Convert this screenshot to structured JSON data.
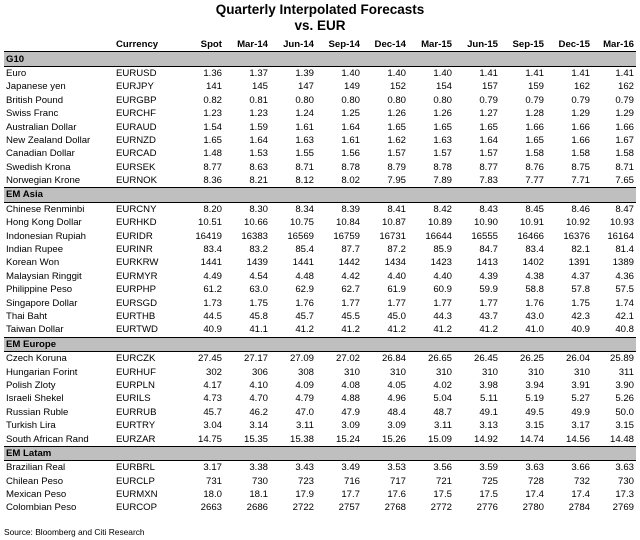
{
  "title": "Quarterly Interpolated Forecasts",
  "subtitle": "vs. EUR",
  "columns": [
    "",
    "Currency",
    "Spot",
    "Mar-14",
    "Jun-14",
    "Sep-14",
    "Dec-14",
    "Mar-15",
    "Jun-15",
    "Sep-15",
    "Dec-15",
    "Mar-16"
  ],
  "sections": [
    {
      "name": "G10",
      "rows": [
        [
          "Euro",
          "EURUSD",
          "1.36",
          "1.37",
          "1.39",
          "1.40",
          "1.40",
          "1.40",
          "1.41",
          "1.41",
          "1.41",
          "1.41"
        ],
        [
          "Japanese yen",
          "EURJPY",
          "141",
          "145",
          "147",
          "149",
          "152",
          "154",
          "157",
          "159",
          "162",
          "162"
        ],
        [
          "British Pound",
          "EURGBP",
          "0.82",
          "0.81",
          "0.80",
          "0.80",
          "0.80",
          "0.80",
          "0.79",
          "0.79",
          "0.79",
          "0.79"
        ],
        [
          "Swiss Franc",
          "EURCHF",
          "1.23",
          "1.23",
          "1.24",
          "1.25",
          "1.26",
          "1.26",
          "1.27",
          "1.28",
          "1.29",
          "1.29"
        ],
        [
          "Australian Dollar",
          "EURAUD",
          "1.54",
          "1.59",
          "1.61",
          "1.64",
          "1.65",
          "1.65",
          "1.65",
          "1.66",
          "1.66",
          "1.66"
        ],
        [
          "New Zealand Dollar",
          "EURNZD",
          "1.65",
          "1.64",
          "1.63",
          "1.61",
          "1.62",
          "1.63",
          "1.64",
          "1.65",
          "1.66",
          "1.67"
        ],
        [
          "Canadian Dollar",
          "EURCAD",
          "1.48",
          "1.53",
          "1.55",
          "1.56",
          "1.57",
          "1.57",
          "1.57",
          "1.58",
          "1.58",
          "1.58"
        ],
        [
          "Swedish Krona",
          "EURSEK",
          "8.77",
          "8.63",
          "8.71",
          "8.78",
          "8.79",
          "8.78",
          "8.77",
          "8.76",
          "8.75",
          "8.71"
        ],
        [
          "Norwegian Krone",
          "EURNOK",
          "8.36",
          "8.21",
          "8.12",
          "8.02",
          "7.95",
          "7.89",
          "7.83",
          "7.77",
          "7.71",
          "7.65"
        ]
      ]
    },
    {
      "name": "EM Asia",
      "rows": [
        [
          "Chinese Renminbi",
          "EURCNY",
          "8.20",
          "8.30",
          "8.34",
          "8.39",
          "8.41",
          "8.42",
          "8.43",
          "8.45",
          "8.46",
          "8.47"
        ],
        [
          "Hong Kong Dollar",
          "EURHKD",
          "10.51",
          "10.66",
          "10.75",
          "10.84",
          "10.87",
          "10.89",
          "10.90",
          "10.91",
          "10.92",
          "10.93"
        ],
        [
          "Indonesian Rupiah",
          "EURIDR",
          "16419",
          "16383",
          "16569",
          "16759",
          "16731",
          "16644",
          "16555",
          "16466",
          "16376",
          "16164"
        ],
        [
          "Indian Rupee",
          "EURINR",
          "83.4",
          "83.2",
          "85.4",
          "87.7",
          "87.2",
          "85.9",
          "84.7",
          "83.4",
          "82.1",
          "81.4"
        ],
        [
          "Korean Won",
          "EURKRW",
          "1441",
          "1439",
          "1441",
          "1442",
          "1434",
          "1423",
          "1413",
          "1402",
          "1391",
          "1389"
        ],
        [
          "Malaysian Ringgit",
          "EURMYR",
          "4.49",
          "4.54",
          "4.48",
          "4.42",
          "4.40",
          "4.40",
          "4.39",
          "4.38",
          "4.37",
          "4.36"
        ],
        [
          "Philippine Peso",
          "EURPHP",
          "61.2",
          "63.0",
          "62.9",
          "62.7",
          "61.9",
          "60.9",
          "59.9",
          "58.8",
          "57.8",
          "57.5"
        ],
        [
          "Singapore Dollar",
          "EURSGD",
          "1.73",
          "1.75",
          "1.76",
          "1.77",
          "1.77",
          "1.77",
          "1.77",
          "1.76",
          "1.75",
          "1.74"
        ],
        [
          "Thai Baht",
          "EURTHB",
          "44.5",
          "45.8",
          "45.7",
          "45.5",
          "45.0",
          "44.3",
          "43.7",
          "43.0",
          "42.3",
          "42.1"
        ],
        [
          "Taiwan Dollar",
          "EURTWD",
          "40.9",
          "41.1",
          "41.2",
          "41.2",
          "41.2",
          "41.2",
          "41.2",
          "41.0",
          "40.9",
          "40.8"
        ]
      ]
    },
    {
      "name": "EM Europe",
      "rows": [
        [
          "Czech Koruna",
          "EURCZK",
          "27.45",
          "27.17",
          "27.09",
          "27.02",
          "26.84",
          "26.65",
          "26.45",
          "26.25",
          "26.04",
          "25.89"
        ],
        [
          "Hungarian Forint",
          "EURHUF",
          "302",
          "306",
          "308",
          "310",
          "310",
          "310",
          "310",
          "310",
          "310",
          "311"
        ],
        [
          "Polish Zloty",
          "EURPLN",
          "4.17",
          "4.10",
          "4.09",
          "4.08",
          "4.05",
          "4.02",
          "3.98",
          "3.94",
          "3.91",
          "3.90"
        ],
        [
          "Israeli Shekel",
          "EURILS",
          "4.73",
          "4.70",
          "4.79",
          "4.88",
          "4.96",
          "5.04",
          "5.11",
          "5.19",
          "5.27",
          "5.26"
        ],
        [
          "Russian Ruble",
          "EURRUB",
          "45.7",
          "46.2",
          "47.0",
          "47.9",
          "48.4",
          "48.7",
          "49.1",
          "49.5",
          "49.9",
          "50.0"
        ],
        [
          "Turkish Lira",
          "EURTRY",
          "3.04",
          "3.14",
          "3.11",
          "3.09",
          "3.09",
          "3.11",
          "3.13",
          "3.15",
          "3.17",
          "3.15"
        ],
        [
          "South African Rand",
          "EURZAR",
          "14.75",
          "15.35",
          "15.38",
          "15.24",
          "15.26",
          "15.09",
          "14.92",
          "14.74",
          "14.56",
          "14.48"
        ]
      ]
    },
    {
      "name": "EM Latam",
      "rows": [
        [
          "Brazilian Real",
          "EURBRL",
          "3.17",
          "3.38",
          "3.43",
          "3.49",
          "3.53",
          "3.56",
          "3.59",
          "3.63",
          "3.66",
          "3.63"
        ],
        [
          "Chilean Peso",
          "EURCLP",
          "731",
          "730",
          "723",
          "716",
          "717",
          "721",
          "725",
          "728",
          "732",
          "730"
        ],
        [
          "Mexican Peso",
          "EURMXN",
          "18.0",
          "18.1",
          "17.9",
          "17.7",
          "17.6",
          "17.5",
          "17.5",
          "17.4",
          "17.4",
          "17.3"
        ],
        [
          "Colombian Peso",
          "EURCOP",
          "2663",
          "2686",
          "2722",
          "2757",
          "2768",
          "2772",
          "2776",
          "2780",
          "2784",
          "2769"
        ]
      ]
    }
  ],
  "source": "Source: Bloomberg and Citi Research"
}
